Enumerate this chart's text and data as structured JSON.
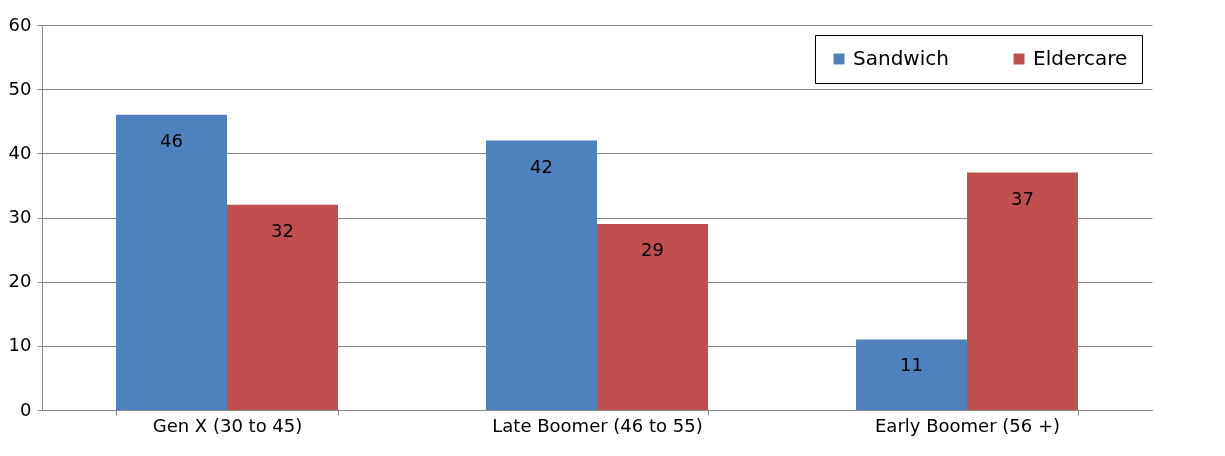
{
  "chart_data": {
    "type": "bar",
    "categories": [
      "Gen X (30 to 45)",
      "Late Boomer (46 to 55)",
      "Early Boomer (56 +)"
    ],
    "series": [
      {
        "name": "Sandwich",
        "color": "#4f81bd",
        "values": [
          46,
          42,
          11
        ]
      },
      {
        "name": "Eldercare",
        "color": "#c0504d",
        "values": [
          32,
          29,
          37
        ]
      }
    ],
    "ylim": [
      0,
      60
    ],
    "yticks": [
      0,
      10,
      20,
      30,
      40,
      50,
      60
    ],
    "grid": "y",
    "legend": "top right",
    "data_labels": true
  }
}
